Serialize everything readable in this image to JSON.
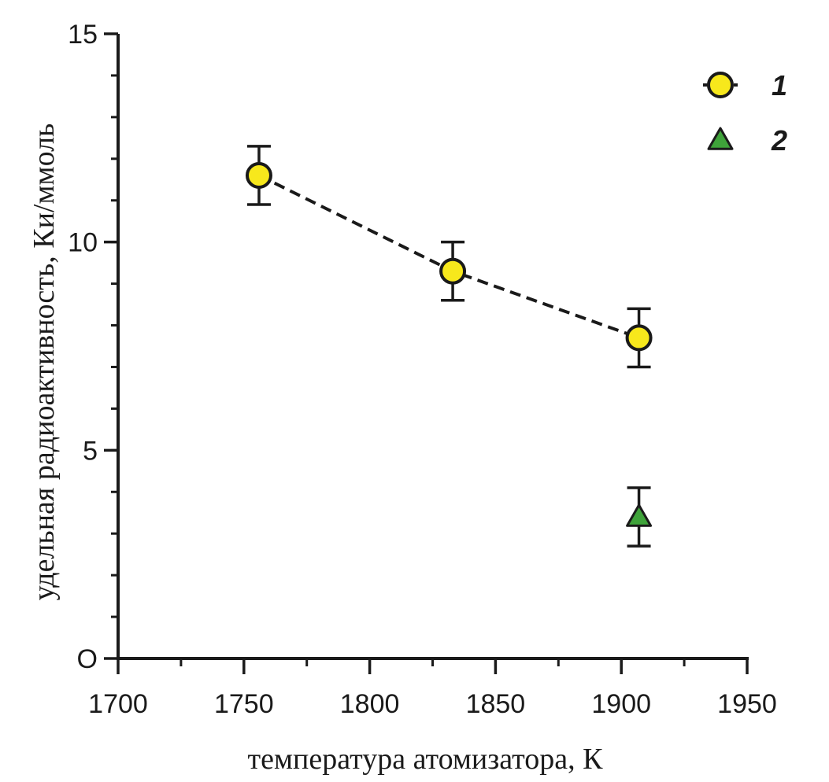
{
  "chart_data": {
    "type": "scatter",
    "title": "",
    "xlabel": "температура атомизатора, К",
    "ylabel": "удельная радиоактивность, Ки/ммоль",
    "xlim": [
      1700,
      1950
    ],
    "ylim": [
      0,
      15
    ],
    "x_ticks": [
      1700,
      1750,
      1800,
      1850,
      1900,
      1950
    ],
    "x_tick_labels": [
      "1700",
      "1750",
      "1800",
      "1850",
      "1900",
      "1950"
    ],
    "y_ticks": [
      0,
      5,
      10,
      15
    ],
    "y_tick_labels": [
      "O",
      "5",
      "10",
      "15"
    ],
    "x_minor_step": 25,
    "y_minor_step": 1,
    "grid": false,
    "legend_position": "top-right",
    "series": [
      {
        "name": "1",
        "marker": "circle",
        "color": "#f7e81c",
        "line": "dashed",
        "points": [
          {
            "x": 1756,
            "y": 11.6,
            "err": 0.7
          },
          {
            "x": 1833,
            "y": 9.3,
            "err": 0.7
          },
          {
            "x": 1907,
            "y": 7.7,
            "err": 0.7
          }
        ]
      },
      {
        "name": "2",
        "marker": "triangle",
        "color": "#3fa33a",
        "line": "none",
        "points": [
          {
            "x": 1907,
            "y": 3.4,
            "err": 0.7
          }
        ]
      }
    ]
  }
}
